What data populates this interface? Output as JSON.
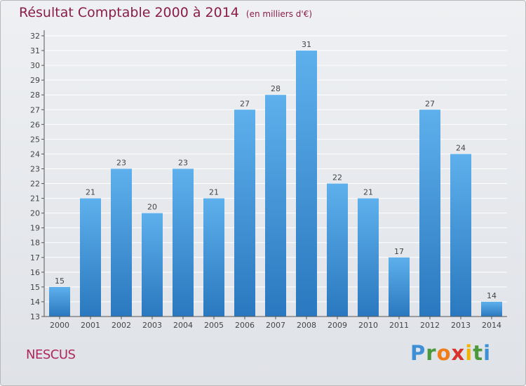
{
  "title": "Résultat Comptable 2000 à 2014",
  "subtitle": "(en milliers d'€)",
  "place": "NESCUS",
  "logo": {
    "text": "Proxiti",
    "colors": [
      "#3d8fd6",
      "#4a9a3c",
      "#ef7d1a",
      "#d8342c",
      "#f0b400",
      "#4a9a3c",
      "#3d8fd6"
    ]
  },
  "colors": {
    "bar_top": "#5eb0ec",
    "bar_bottom": "#2a78bf",
    "grid": "#ffffff",
    "axis": "#555555"
  },
  "chart_data": {
    "type": "bar",
    "title": "Résultat Comptable 2000 à 2014",
    "subtitle": "(en milliers d'€)",
    "xlabel": "",
    "ylabel": "",
    "categories": [
      "2000",
      "2001",
      "2002",
      "2003",
      "2004",
      "2005",
      "2006",
      "2007",
      "2008",
      "2009",
      "2010",
      "2011",
      "2012",
      "2013",
      "2014"
    ],
    "values": [
      15,
      21,
      23,
      20,
      23,
      21,
      27,
      28,
      31,
      22,
      21,
      17,
      27,
      24,
      14
    ],
    "ylim": [
      13,
      32
    ],
    "yticks": [
      13,
      14,
      15,
      16,
      17,
      18,
      19,
      20,
      21,
      22,
      23,
      24,
      25,
      26,
      27,
      28,
      29,
      30,
      31,
      32
    ],
    "grid": true,
    "data_labels": true
  }
}
